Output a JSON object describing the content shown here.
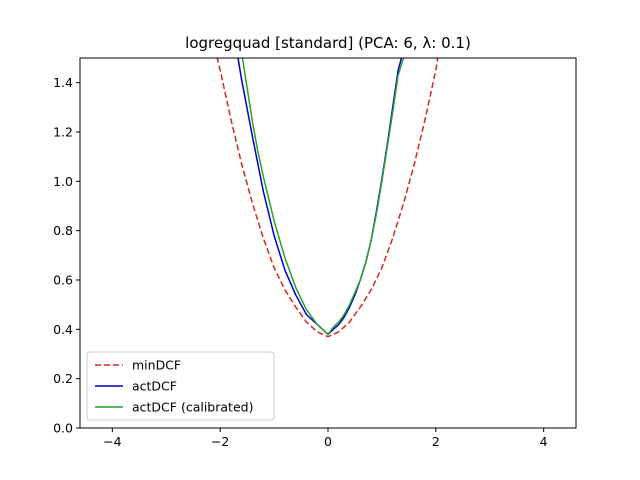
{
  "chart_data": {
    "type": "line",
    "title": "logregquad [standard] (PCA: 6, λ: 0.1)",
    "xlabel": "",
    "ylabel": "",
    "xlim": [
      -4.6,
      4.6
    ],
    "ylim": [
      0.0,
      1.5
    ],
    "xticks": [
      -4,
      -2,
      0,
      2,
      4
    ],
    "xtick_labels": [
      "−4",
      "−2",
      "0",
      "2",
      "4"
    ],
    "yticks": [
      0.0,
      0.2,
      0.4,
      0.6,
      0.8,
      1.0,
      1.2,
      1.4
    ],
    "ytick_labels": [
      "0.0",
      "0.2",
      "0.4",
      "0.6",
      "0.8",
      "1.0",
      "1.2",
      "1.4"
    ],
    "grid": false,
    "legend_position": "lower-left",
    "series": [
      {
        "name": "minDCF",
        "color": "#d62728",
        "style": "dashed",
        "x": [
          -2.1,
          -2.0,
          -1.8,
          -1.6,
          -1.4,
          -1.2,
          -1.0,
          -0.8,
          -0.6,
          -0.4,
          -0.2,
          0.0,
          0.2,
          0.4,
          0.6,
          0.8,
          1.0,
          1.2,
          1.4,
          1.6,
          1.8,
          2.0,
          2.05
        ],
        "y": [
          1.54,
          1.45,
          1.25,
          1.07,
          0.91,
          0.77,
          0.65,
          0.56,
          0.49,
          0.43,
          0.39,
          0.37,
          0.39,
          0.43,
          0.49,
          0.56,
          0.65,
          0.77,
          0.91,
          1.07,
          1.25,
          1.45,
          1.52
        ]
      },
      {
        "name": "actDCF",
        "color": "#0000cc",
        "style": "solid",
        "x": [
          -1.67,
          -1.6,
          -1.4,
          -1.2,
          -1.0,
          -0.8,
          -0.6,
          -0.4,
          -0.2,
          -0.05,
          0.0,
          0.1,
          0.2,
          0.3,
          0.4,
          0.5,
          0.6,
          0.7,
          0.8,
          0.9,
          1.0,
          1.1,
          1.2,
          1.3,
          1.4
        ],
        "y": [
          1.5,
          1.41,
          1.18,
          0.96,
          0.78,
          0.64,
          0.54,
          0.46,
          0.42,
          0.39,
          0.38,
          0.4,
          0.42,
          0.45,
          0.49,
          0.54,
          0.6,
          0.67,
          0.76,
          0.88,
          1.01,
          1.15,
          1.3,
          1.45,
          1.53
        ]
      },
      {
        "name": "actDCF (calibrated)",
        "color": "#2ca02c",
        "style": "solid",
        "x": [
          -1.6,
          -1.5,
          -1.4,
          -1.3,
          -1.2,
          -1.0,
          -0.8,
          -0.6,
          -0.4,
          -0.2,
          -0.05,
          0.0,
          0.1,
          0.2,
          0.3,
          0.4,
          0.5,
          0.6,
          0.7,
          0.8,
          0.9,
          1.0,
          1.1,
          1.2,
          1.3,
          1.4
        ],
        "y": [
          1.52,
          1.38,
          1.24,
          1.12,
          1.02,
          0.84,
          0.69,
          0.57,
          0.48,
          0.42,
          0.39,
          0.38,
          0.41,
          0.43,
          0.46,
          0.5,
          0.55,
          0.6,
          0.67,
          0.76,
          0.87,
          1.0,
          1.14,
          1.28,
          1.43,
          1.5
        ]
      }
    ]
  }
}
